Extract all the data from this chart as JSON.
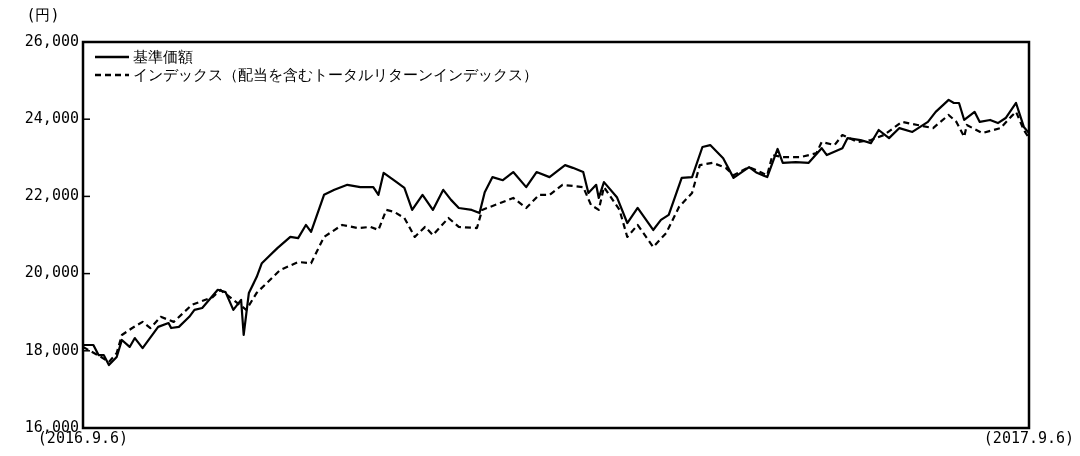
{
  "chart_data": {
    "type": "line",
    "ylabel": "(円)",
    "legend": "top left",
    "grid": false,
    "marker": "none",
    "xlim": [
      "2016-09-06",
      "2017-09-06"
    ],
    "xticks": [
      {
        "value": "2016-09-06",
        "label": "(2016.9.6)"
      },
      {
        "value": "2017-09-06",
        "label": "(2017.9.6)"
      }
    ],
    "ylim": [
      16000,
      26000
    ],
    "yticks": [
      {
        "value": 16000,
        "label": "16,000"
      },
      {
        "value": 18000,
        "label": "18,000"
      },
      {
        "value": 20000,
        "label": "20,000"
      },
      {
        "value": 22000,
        "label": "22,000"
      },
      {
        "value": 24000,
        "label": "24,000"
      },
      {
        "value": 26000,
        "label": "26,000"
      }
    ],
    "series": [
      {
        "name": "基準価額",
        "color": "#000000",
        "line_style": "solid",
        "x": [
          "2016-09-06",
          "2016-09-10",
          "2016-09-12",
          "2016-09-14",
          "2016-09-16",
          "2016-09-19",
          "2016-09-21",
          "2016-09-24",
          "2016-09-26",
          "2016-09-29",
          "2016-10-05",
          "2016-10-09",
          "2016-10-10",
          "2016-10-13",
          "2016-10-17",
          "2016-10-19",
          "2016-10-22",
          "2016-10-28",
          "2016-10-31",
          "2016-11-03",
          "2016-11-06",
          "2016-11-07",
          "2016-11-09",
          "2016-11-12",
          "2016-11-14",
          "2016-11-20",
          "2016-11-25",
          "2016-11-28",
          "2016-12-01",
          "2016-12-03",
          "2016-12-08",
          "2016-12-12",
          "2016-12-17",
          "2016-12-22",
          "2016-12-27",
          "2016-12-29",
          "2016-12-31",
          "2017-01-05",
          "2017-01-08",
          "2017-01-11",
          "2017-01-15",
          "2017-01-19",
          "2017-01-23",
          "2017-01-26",
          "2017-01-29",
          "2017-02-03",
          "2017-02-06",
          "2017-02-08",
          "2017-02-11",
          "2017-02-15",
          "2017-02-19",
          "2017-02-24",
          "2017-02-28",
          "2017-03-05",
          "2017-03-11",
          "2017-03-14",
          "2017-03-18",
          "2017-03-20",
          "2017-03-23",
          "2017-03-24",
          "2017-03-26",
          "2017-03-31",
          "2017-04-04",
          "2017-04-08",
          "2017-04-14",
          "2017-04-17",
          "2017-04-20",
          "2017-04-25",
          "2017-04-29",
          "2017-05-03",
          "2017-05-06",
          "2017-05-11",
          "2017-05-15",
          "2017-05-21",
          "2017-05-24",
          "2017-05-28",
          "2017-06-01",
          "2017-06-03",
          "2017-06-08",
          "2017-06-13",
          "2017-06-18",
          "2017-06-20",
          "2017-06-26",
          "2017-06-28",
          "2017-07-03",
          "2017-07-07",
          "2017-07-10",
          "2017-07-14",
          "2017-07-18",
          "2017-07-23",
          "2017-07-29",
          "2017-08-01",
          "2017-08-06",
          "2017-08-08",
          "2017-08-10",
          "2017-08-12",
          "2017-08-16",
          "2017-08-18",
          "2017-08-22",
          "2017-08-25",
          "2017-08-28",
          "2017-09-01",
          "2017-09-04",
          "2017-09-06"
        ],
        "values": [
          18150,
          18150,
          17890,
          17890,
          17630,
          17840,
          18280,
          18100,
          18330,
          18070,
          18620,
          18720,
          18590,
          18620,
          18880,
          19060,
          19110,
          19580,
          19520,
          19060,
          19320,
          18410,
          19500,
          19910,
          20270,
          20660,
          20950,
          20920,
          21260,
          21080,
          22040,
          22170,
          22300,
          22240,
          22240,
          22040,
          22610,
          22370,
          22220,
          21650,
          22040,
          21650,
          22170,
          21910,
          21700,
          21650,
          21570,
          22110,
          22500,
          22420,
          22630,
          22240,
          22630,
          22500,
          22810,
          22740,
          22630,
          22090,
          22300,
          21960,
          22370,
          21980,
          21310,
          21700,
          21130,
          21390,
          21520,
          22480,
          22500,
          23280,
          23330,
          22990,
          22480,
          22760,
          22610,
          22500,
          23230,
          22870,
          22890,
          22870,
          23250,
          23070,
          23250,
          23510,
          23460,
          23380,
          23720,
          23510,
          23770,
          23670,
          23930,
          24190,
          24500,
          24420,
          24420,
          23980,
          24190,
          23930,
          23980,
          23900,
          24030,
          24420,
          23800,
          23640
        ]
      },
      {
        "name": "インデックス（配当を含むトータルリターンインデックス）",
        "color": "#000000",
        "line_style": "dashed",
        "x": [
          "2016-09-06",
          "2016-09-13",
          "2016-09-16",
          "2016-09-19",
          "2016-09-21",
          "2016-09-25",
          "2016-09-29",
          "2016-10-02",
          "2016-10-06",
          "2016-10-11",
          "2016-10-18",
          "2016-10-26",
          "2016-10-29",
          "2016-11-08",
          "2016-11-12",
          "2016-11-21",
          "2016-11-28",
          "2016-12-03",
          "2016-12-08",
          "2016-12-15",
          "2016-12-21",
          "2016-12-26",
          "2016-12-29",
          "2017-01-01",
          "2017-01-04",
          "2017-01-08",
          "2017-01-12",
          "2017-01-16",
          "2017-01-19",
          "2017-01-25",
          "2017-01-29",
          "2017-02-05",
          "2017-02-07",
          "2017-02-14",
          "2017-02-19",
          "2017-02-24",
          "2017-03-01",
          "2017-03-05",
          "2017-03-10",
          "2017-03-18",
          "2017-03-21",
          "2017-03-24",
          "2017-03-26",
          "2017-04-01",
          "2017-04-04",
          "2017-04-08",
          "2017-04-14",
          "2017-04-19",
          "2017-04-24",
          "2017-04-29",
          "2017-05-02",
          "2017-05-07",
          "2017-05-12",
          "2017-05-15",
          "2017-05-21",
          "2017-05-28",
          "2017-05-30",
          "2017-06-03",
          "2017-06-10",
          "2017-06-16",
          "2017-06-18",
          "2017-06-23",
          "2017-06-26",
          "2017-07-02",
          "2017-07-07",
          "2017-07-12",
          "2017-07-19",
          "2017-07-25",
          "2017-07-31",
          "2017-08-06",
          "2017-08-09",
          "2017-08-12",
          "2017-08-13",
          "2017-08-19",
          "2017-08-26",
          "2017-08-30",
          "2017-09-01",
          "2017-09-04",
          "2017-09-06"
        ],
        "values": [
          18100,
          17840,
          17710,
          17940,
          18410,
          18590,
          18750,
          18590,
          18880,
          18750,
          19190,
          19390,
          19580,
          19060,
          19500,
          20090,
          20300,
          20270,
          20950,
          21260,
          21180,
          21210,
          21130,
          21650,
          21600,
          21440,
          20950,
          21210,
          21000,
          21440,
          21210,
          21180,
          21650,
          21830,
          21960,
          21700,
          22040,
          22040,
          22300,
          22240,
          21780,
          21650,
          22240,
          21650,
          20950,
          21260,
          20690,
          21050,
          21730,
          22090,
          22810,
          22870,
          22740,
          22550,
          22760,
          22550,
          23070,
          23020,
          23020,
          23120,
          23410,
          23330,
          23590,
          23410,
          23460,
          23590,
          23930,
          23850,
          23770,
          24110,
          23930,
          23540,
          23850,
          23640,
          23770,
          24060,
          24190,
          23720,
          23510
        ]
      }
    ]
  }
}
